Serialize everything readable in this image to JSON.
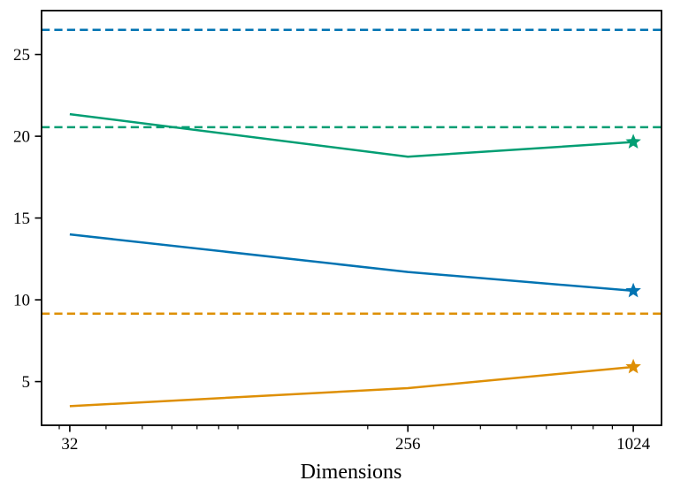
{
  "chart_data": {
    "type": "line",
    "title": "",
    "xlabel": "Dimensions",
    "ylabel": "",
    "x_scale": "log2",
    "xlim": [
      26.91,
      1217.75
    ],
    "ylim": [
      2.33,
      27.68
    ],
    "grid": false,
    "legend": "none",
    "x": [
      32,
      256,
      1024
    ],
    "x_tick_labels": [
      "32",
      "256",
      "1024"
    ],
    "x_minor_ticks": [
      30,
      40,
      50,
      60,
      70,
      80,
      90,
      200,
      300,
      400,
      500,
      600,
      700,
      800,
      900
    ],
    "y_ticks": [
      5,
      10,
      15,
      20,
      25
    ],
    "y_tick_labels": [
      "5",
      "10",
      "15",
      "20",
      "25"
    ],
    "series": [
      {
        "name": "green-line",
        "color": "#029e73",
        "style": "solid",
        "end_marker": "star",
        "values": [
          21.35,
          18.75,
          19.65
        ]
      },
      {
        "name": "blue-line",
        "color": "#0173b2",
        "style": "solid",
        "end_marker": "star",
        "values": [
          14.0,
          11.7,
          10.55
        ]
      },
      {
        "name": "orange-line",
        "color": "#de8f05",
        "style": "solid",
        "end_marker": "star",
        "values": [
          3.5,
          4.6,
          5.9
        ]
      }
    ],
    "hlines": [
      {
        "name": "blue-dashed-baseline",
        "color": "#0173b2",
        "y": 26.5
      },
      {
        "name": "green-dashed-baseline",
        "color": "#029e73",
        "y": 20.55
      },
      {
        "name": "orange-dashed-baseline",
        "color": "#de8f05",
        "y": 9.15
      }
    ],
    "colors": {
      "blue": "#0173b2",
      "green": "#029e73",
      "orange": "#de8f05",
      "axis": "#000000"
    }
  }
}
